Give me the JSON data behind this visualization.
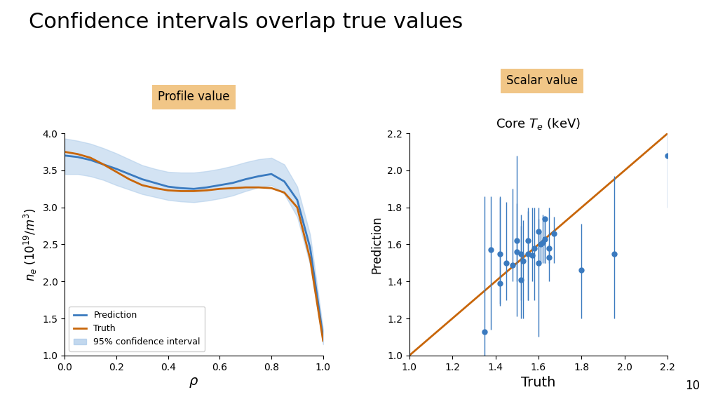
{
  "title": "Confidence intervals overlap true values",
  "title_fontsize": 22,
  "background_color": "#ffffff",
  "left_label": "Profile value",
  "right_label": "Scalar value",
  "label_bg_color": "#f0c07a",
  "profile_rho": [
    0.0,
    0.05,
    0.1,
    0.15,
    0.2,
    0.25,
    0.3,
    0.35,
    0.4,
    0.45,
    0.5,
    0.55,
    0.6,
    0.65,
    0.7,
    0.75,
    0.8,
    0.85,
    0.9,
    0.95,
    1.0
  ],
  "profile_pred": [
    3.7,
    3.68,
    3.64,
    3.58,
    3.52,
    3.45,
    3.38,
    3.33,
    3.28,
    3.26,
    3.25,
    3.27,
    3.3,
    3.33,
    3.38,
    3.42,
    3.45,
    3.35,
    3.1,
    2.45,
    1.25
  ],
  "profile_truth": [
    3.75,
    3.72,
    3.67,
    3.58,
    3.48,
    3.38,
    3.3,
    3.26,
    3.23,
    3.22,
    3.22,
    3.23,
    3.25,
    3.26,
    3.27,
    3.27,
    3.26,
    3.2,
    3.0,
    2.3,
    1.2
  ],
  "profile_ci_upper": [
    3.93,
    3.9,
    3.86,
    3.8,
    3.73,
    3.65,
    3.57,
    3.52,
    3.48,
    3.47,
    3.47,
    3.49,
    3.52,
    3.56,
    3.61,
    3.65,
    3.67,
    3.58,
    3.28,
    2.63,
    1.35
  ],
  "profile_ci_lower": [
    3.45,
    3.45,
    3.42,
    3.37,
    3.3,
    3.24,
    3.18,
    3.14,
    3.1,
    3.08,
    3.07,
    3.09,
    3.12,
    3.16,
    3.22,
    3.27,
    3.3,
    3.18,
    2.87,
    2.22,
    1.15
  ],
  "profile_color": "#3a7abf",
  "truth_color": "#c8660a",
  "ci_color": "#a8c8e8",
  "ci_alpha": 0.5,
  "profile_ylabel": "$n_e \\ (10^{19}/m^3)$",
  "profile_xlabel": "$\\rho$",
  "profile_ylim": [
    1.0,
    4.0
  ],
  "profile_xlim": [
    0.0,
    1.0
  ],
  "profile_yticks": [
    1.0,
    1.5,
    2.0,
    2.5,
    3.0,
    3.5,
    4.0
  ],
  "profile_xticks": [
    0.0,
    0.2,
    0.4,
    0.6,
    0.8,
    1.0
  ],
  "scatter_truth": [
    1.35,
    1.38,
    1.42,
    1.42,
    1.45,
    1.48,
    1.5,
    1.5,
    1.52,
    1.52,
    1.53,
    1.55,
    1.55,
    1.57,
    1.58,
    1.6,
    1.6,
    1.61,
    1.62,
    1.63,
    1.63,
    1.65,
    1.65,
    1.67,
    1.8,
    1.95,
    2.2
  ],
  "scatter_pred": [
    1.13,
    1.57,
    1.39,
    1.55,
    1.5,
    1.49,
    1.56,
    1.62,
    1.55,
    1.41,
    1.51,
    1.55,
    1.62,
    1.54,
    1.58,
    1.5,
    1.67,
    1.6,
    1.61,
    1.63,
    1.74,
    1.58,
    1.53,
    1.66,
    1.46,
    1.55,
    2.08
  ],
  "scatter_err_low": [
    0.13,
    0.43,
    0.11,
    0.28,
    0.2,
    0.09,
    0.35,
    0.22,
    0.25,
    0.21,
    0.31,
    0.25,
    0.32,
    0.14,
    0.28,
    0.4,
    0.17,
    0.1,
    0.11,
    0.13,
    0.24,
    0.08,
    0.13,
    0.16,
    0.26,
    0.35,
    0.28
  ],
  "scatter_err_high": [
    0.73,
    0.29,
    0.46,
    0.31,
    0.33,
    0.41,
    0.52,
    0.2,
    0.21,
    0.29,
    0.22,
    0.23,
    0.18,
    0.26,
    0.22,
    0.3,
    0.07,
    0.07,
    0.15,
    0.11,
    0.0,
    0.22,
    0.07,
    0.09,
    0.25,
    0.42,
    0.12
  ],
  "scatter_color": "#3a7abf",
  "diagonal_color": "#c8660a",
  "scatter_xlim": [
    1.0,
    2.2
  ],
  "scatter_ylim": [
    1.0,
    2.2
  ],
  "scatter_xticks": [
    1.0,
    1.2,
    1.4,
    1.6,
    1.8,
    2.0,
    2.2
  ],
  "scatter_yticks": [
    1.0,
    1.2,
    1.4,
    1.6,
    1.8,
    2.0,
    2.2
  ],
  "scatter_xlabel": "Truth",
  "scatter_ylabel": "Prediction",
  "scatter_title": "Core $T_e$ (keV)",
  "page_number": "10"
}
